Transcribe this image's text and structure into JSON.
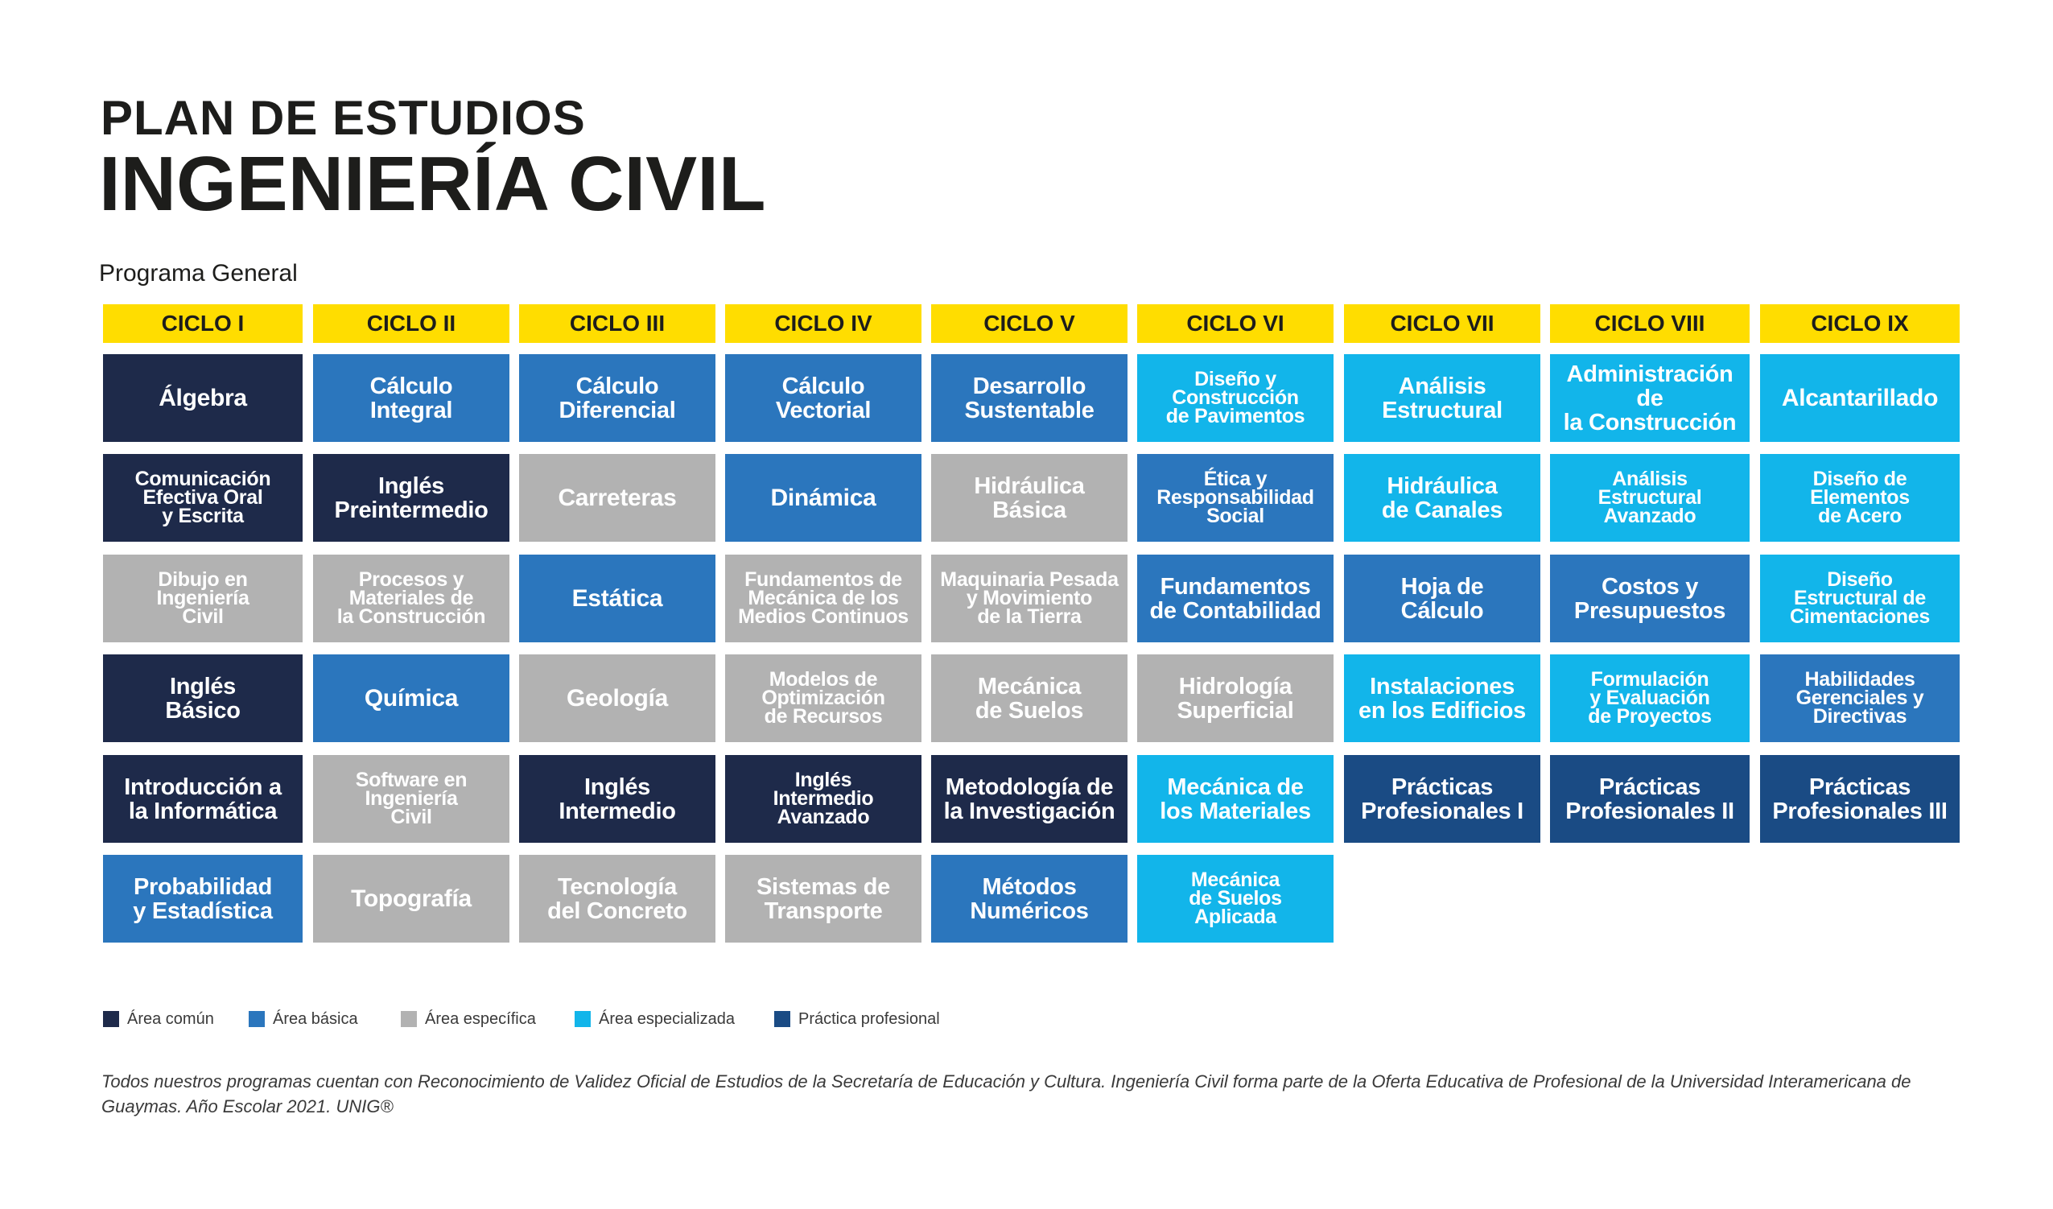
{
  "header": {
    "line1": "PLAN DE ESTUDIOS",
    "line2": "INGENIERÍA CIVIL",
    "program": "Programa General"
  },
  "colors": {
    "header_yellow": "#ffdd00",
    "area_comun": "#1e2a4a",
    "area_basica": "#2b76bd",
    "area_especifica": "#b2b2b2",
    "area_especializada": "#12b5ea",
    "practica_profesional": "#1a4b84"
  },
  "cycles": [
    {
      "label": "CICLO I",
      "courses": [
        {
          "name": "Álgebra",
          "area": "area_comun"
        },
        {
          "name": "Comunicación\nEfectiva Oral\ny Escrita",
          "area": "area_comun"
        },
        {
          "name": "Dibujo en\nIngeniería\nCivil",
          "area": "area_especifica"
        },
        {
          "name": "Inglés\nBásico",
          "area": "area_comun"
        },
        {
          "name": "Introducción a\nla Informática",
          "area": "area_comun"
        },
        {
          "name": "Probabilidad\ny Estadística",
          "area": "area_basica"
        }
      ]
    },
    {
      "label": "CICLO II",
      "courses": [
        {
          "name": "Cálculo\nIntegral",
          "area": "area_basica"
        },
        {
          "name": "Inglés\nPreintermedio",
          "area": "area_comun"
        },
        {
          "name": "Procesos y\nMateriales de\nla Construcción",
          "area": "area_especifica"
        },
        {
          "name": "Química",
          "area": "area_basica"
        },
        {
          "name": "Software en\nIngeniería\nCivil",
          "area": "area_especifica"
        },
        {
          "name": "Topografía",
          "area": "area_especifica"
        }
      ]
    },
    {
      "label": "CICLO III",
      "courses": [
        {
          "name": "Cálculo\nDiferencial",
          "area": "area_basica"
        },
        {
          "name": "Carreteras",
          "area": "area_especifica"
        },
        {
          "name": "Estática",
          "area": "area_basica"
        },
        {
          "name": "Geología",
          "area": "area_especifica"
        },
        {
          "name": "Inglés\nIntermedio",
          "area": "area_comun"
        },
        {
          "name": "Tecnología\ndel Concreto",
          "area": "area_especifica"
        }
      ]
    },
    {
      "label": "CICLO IV",
      "courses": [
        {
          "name": "Cálculo\nVectorial",
          "area": "area_basica"
        },
        {
          "name": "Dinámica",
          "area": "area_basica"
        },
        {
          "name": "Fundamentos de\nMecánica de los\nMedios Continuos",
          "area": "area_especifica"
        },
        {
          "name": "Modelos de\nOptimización\nde Recursos",
          "area": "area_especifica"
        },
        {
          "name": "Inglés\nIntermedio\nAvanzado",
          "area": "area_comun"
        },
        {
          "name": "Sistemas de\nTransporte",
          "area": "area_especifica"
        }
      ]
    },
    {
      "label": "CICLO V",
      "courses": [
        {
          "name": "Desarrollo\nSustentable",
          "area": "area_basica"
        },
        {
          "name": "Hidráulica\nBásica",
          "area": "area_especifica"
        },
        {
          "name": "Maquinaria Pesada\ny Movimiento\nde la Tierra",
          "area": "area_especifica"
        },
        {
          "name": "Mecánica\nde Suelos",
          "area": "area_especifica"
        },
        {
          "name": "Metodología de\nla Investigación",
          "area": "area_comun"
        },
        {
          "name": "Métodos\nNuméricos",
          "area": "area_basica"
        }
      ]
    },
    {
      "label": "CICLO VI",
      "courses": [
        {
          "name": "Diseño y\nConstrucción\nde Pavimentos",
          "area": "area_especializada"
        },
        {
          "name": "Ética y\nResponsabilidad\nSocial",
          "area": "area_basica"
        },
        {
          "name": "Fundamentos\nde Contabilidad",
          "area": "area_basica"
        },
        {
          "name": "Hidrología\nSuperficial",
          "area": "area_especifica"
        },
        {
          "name": "Mecánica de\nlos Materiales",
          "area": "area_especializada"
        },
        {
          "name": "Mecánica\nde Suelos\nAplicada",
          "area": "area_especializada"
        }
      ]
    },
    {
      "label": "CICLO VII",
      "courses": [
        {
          "name": "Análisis\nEstructural",
          "area": "area_especializada"
        },
        {
          "name": "Hidráulica\nde Canales",
          "area": "area_especializada"
        },
        {
          "name": "Hoja de\nCálculo",
          "area": "area_basica"
        },
        {
          "name": "Instalaciones\nen los Edificios",
          "area": "area_especializada"
        },
        {
          "name": "Prácticas\nProfesionales I",
          "area": "practica_profesional"
        }
      ]
    },
    {
      "label": "CICLO VIII",
      "courses": [
        {
          "name": "Administración de\nla Construcción",
          "area": "area_especializada"
        },
        {
          "name": "Análisis\nEstructural\nAvanzado",
          "area": "area_especializada"
        },
        {
          "name": "Costos y\nPresupuestos",
          "area": "area_basica"
        },
        {
          "name": "Formulación\ny Evaluación\nde Proyectos",
          "area": "area_especializada"
        },
        {
          "name": "Prácticas\nProfesionales II",
          "area": "practica_profesional"
        }
      ]
    },
    {
      "label": "CICLO IX",
      "courses": [
        {
          "name": "Alcantarillado",
          "area": "area_especializada"
        },
        {
          "name": "Diseño de\nElementos\nde Acero",
          "area": "area_especializada"
        },
        {
          "name": "Diseño\nEstructural de\nCimentaciones",
          "area": "area_especializada"
        },
        {
          "name": "Habilidades\nGerenciales y\nDirectivas",
          "area": "area_basica"
        },
        {
          "name": "Prácticas\nProfesionales III",
          "area": "practica_profesional"
        }
      ]
    }
  ],
  "legend": [
    {
      "label": "Área común",
      "area": "area_comun"
    },
    {
      "label": "Área básica",
      "area": "area_basica"
    },
    {
      "label": "Área específica",
      "area": "area_especifica"
    },
    {
      "label": "Área especializada",
      "area": "area_especializada"
    },
    {
      "label": "Práctica profesional",
      "area": "practica_profesional"
    }
  ],
  "footnote": "Todos nuestros programas cuentan con Reconocimiento de Validez Oficial de Estudios de la Secretaría de Educación y Cultura. Ingeniería Civil forma parte de la Oferta Educativa de Profesional de la Universidad Interamericana de Guaymas. Año Escolar 2021. UNIG®"
}
